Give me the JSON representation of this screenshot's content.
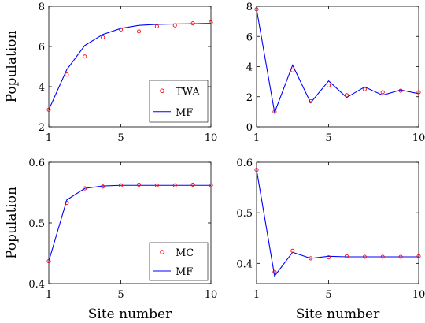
{
  "chart_data": [
    {
      "panel": "top-left",
      "type": "line",
      "x": [
        1,
        2,
        3,
        4,
        5,
        6,
        7,
        8,
        9,
        10
      ],
      "xlim": [
        1,
        10
      ],
      "ylim": [
        2,
        8
      ],
      "xticks": [
        "1",
        "5",
        "10"
      ],
      "yticks": [
        "2",
        "4",
        "6",
        "8"
      ],
      "xlabel": "",
      "ylabel": "Population",
      "legend": "bottom-right",
      "series": [
        {
          "name": "TWA",
          "marker": "circle",
          "color": "#ff0000",
          "values": [
            2.85,
            4.6,
            5.5,
            6.45,
            6.85,
            6.75,
            7.0,
            7.05,
            7.15,
            7.2
          ]
        },
        {
          "name": "MF",
          "marker": "line",
          "color": "#0000ff",
          "values": [
            2.85,
            4.85,
            6.05,
            6.6,
            6.9,
            7.05,
            7.1,
            7.12,
            7.13,
            7.15
          ]
        }
      ]
    },
    {
      "panel": "top-right",
      "type": "line",
      "x": [
        1,
        2,
        3,
        4,
        5,
        6,
        7,
        8,
        9,
        10
      ],
      "xlim": [
        1,
        10
      ],
      "ylim": [
        0,
        8
      ],
      "xticks": [
        "1",
        "5",
        "10"
      ],
      "yticks": [
        "0",
        "2",
        "4",
        "6",
        "8"
      ],
      "xlabel": "",
      "ylabel": "",
      "series": [
        {
          "name": "",
          "marker": "circle",
          "color": "#ff0000",
          "values": [
            7.8,
            1.0,
            3.75,
            1.7,
            2.75,
            2.1,
            2.5,
            2.3,
            2.4,
            2.3
          ]
        },
        {
          "name": "",
          "marker": "line",
          "color": "#0000ff",
          "values": [
            7.8,
            0.95,
            4.1,
            1.6,
            3.05,
            1.95,
            2.65,
            2.1,
            2.45,
            2.2
          ]
        }
      ]
    },
    {
      "panel": "bottom-left",
      "type": "line",
      "x": [
        1,
        2,
        3,
        4,
        5,
        6,
        7,
        8,
        9,
        10
      ],
      "xlim": [
        1,
        10
      ],
      "ylim": [
        0.4,
        0.6
      ],
      "xticks": [
        "1",
        "5",
        "10"
      ],
      "yticks": [
        "0.4",
        "0.5",
        "0.6"
      ],
      "xlabel": "Site number",
      "ylabel": "Population",
      "legend": "bottom-right",
      "series": [
        {
          "name": "MC",
          "marker": "circle",
          "color": "#ff0000",
          "values": [
            0.437,
            0.533,
            0.557,
            0.56,
            0.562,
            0.563,
            0.562,
            0.562,
            0.563,
            0.562
          ]
        },
        {
          "name": "MF",
          "marker": "line",
          "color": "#0000ff",
          "values": [
            0.437,
            0.538,
            0.557,
            0.561,
            0.562,
            0.562,
            0.562,
            0.562,
            0.562,
            0.562
          ]
        }
      ]
    },
    {
      "panel": "bottom-right",
      "type": "line",
      "x": [
        1,
        2,
        3,
        4,
        5,
        6,
        7,
        8,
        9,
        10
      ],
      "xlim": [
        1,
        10
      ],
      "ylim": [
        0.36,
        0.6
      ],
      "xticks": [
        "1",
        "5",
        "10"
      ],
      "yticks": [
        "0.4",
        "0.5",
        "0.6"
      ],
      "xlabel": "Site number",
      "ylabel": "",
      "series": [
        {
          "name": "",
          "marker": "circle",
          "color": "#ff0000",
          "values": [
            0.585,
            0.383,
            0.425,
            0.41,
            0.412,
            0.414,
            0.413,
            0.413,
            0.413,
            0.414
          ]
        },
        {
          "name": "",
          "marker": "line",
          "color": "#0000ff",
          "values": [
            0.585,
            0.375,
            0.422,
            0.41,
            0.414,
            0.413,
            0.413,
            0.413,
            0.413,
            0.413
          ]
        }
      ]
    }
  ]
}
